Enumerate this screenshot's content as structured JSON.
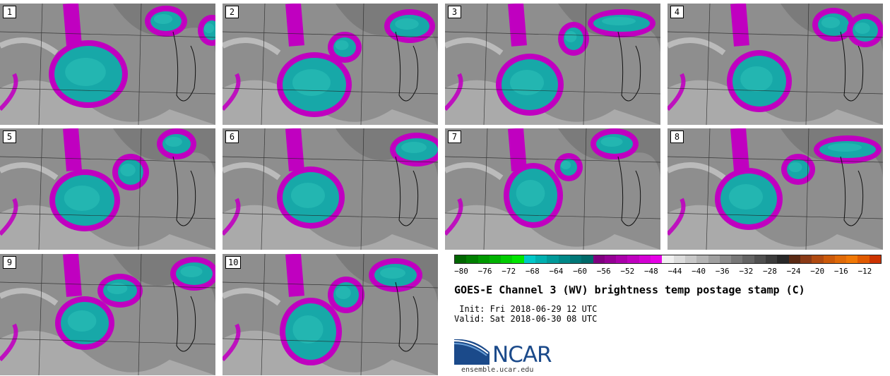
{
  "panels": [
    {
      "label": "1"
    },
    {
      "label": "2"
    },
    {
      "label": "3"
    },
    {
      "label": "4"
    },
    {
      "label": "5"
    },
    {
      "label": "6"
    },
    {
      "label": "7"
    },
    {
      "label": "8"
    },
    {
      "label": "9"
    },
    {
      "label": "10"
    }
  ],
  "colorbar": {
    "tick_labels": [
      "−80",
      "−76",
      "−72",
      "−68",
      "−64",
      "−60",
      "−56",
      "−52",
      "−48",
      "−44",
      "−40",
      "−36",
      "−32",
      "−28",
      "−24",
      "−20",
      "−16",
      "−12"
    ],
    "colors": [
      "#006600",
      "#007f00",
      "#009900",
      "#00b200",
      "#00cc00",
      "#00e500",
      "#00c8c8",
      "#00b0b0",
      "#009a9a",
      "#008888",
      "#007777",
      "#006a6a",
      "#800080",
      "#950095",
      "#aa00aa",
      "#bf00bf",
      "#d400d4",
      "#e600e6",
      "#f0f0f0",
      "#dcdcdc",
      "#c8c8c8",
      "#b4b4b4",
      "#a0a0a0",
      "#8c8c8c",
      "#787878",
      "#646464",
      "#505050",
      "#3c3c3c",
      "#282828",
      "#5a2a14",
      "#8a3a16",
      "#b04a10",
      "#cc5a0a",
      "#e06a08",
      "#f07806",
      "#e05a00",
      "#cc3300"
    ]
  },
  "title": "GOES-E Channel 3 (WV) brightness temp postage stamp (C)",
  "init": " Init: Fri 2018-06-29 12 UTC",
  "valid": "Valid: Sat 2018-06-30 08 UTC",
  "logo": {
    "name": "NCAR",
    "site": "ensemble.ucar.edu"
  }
}
